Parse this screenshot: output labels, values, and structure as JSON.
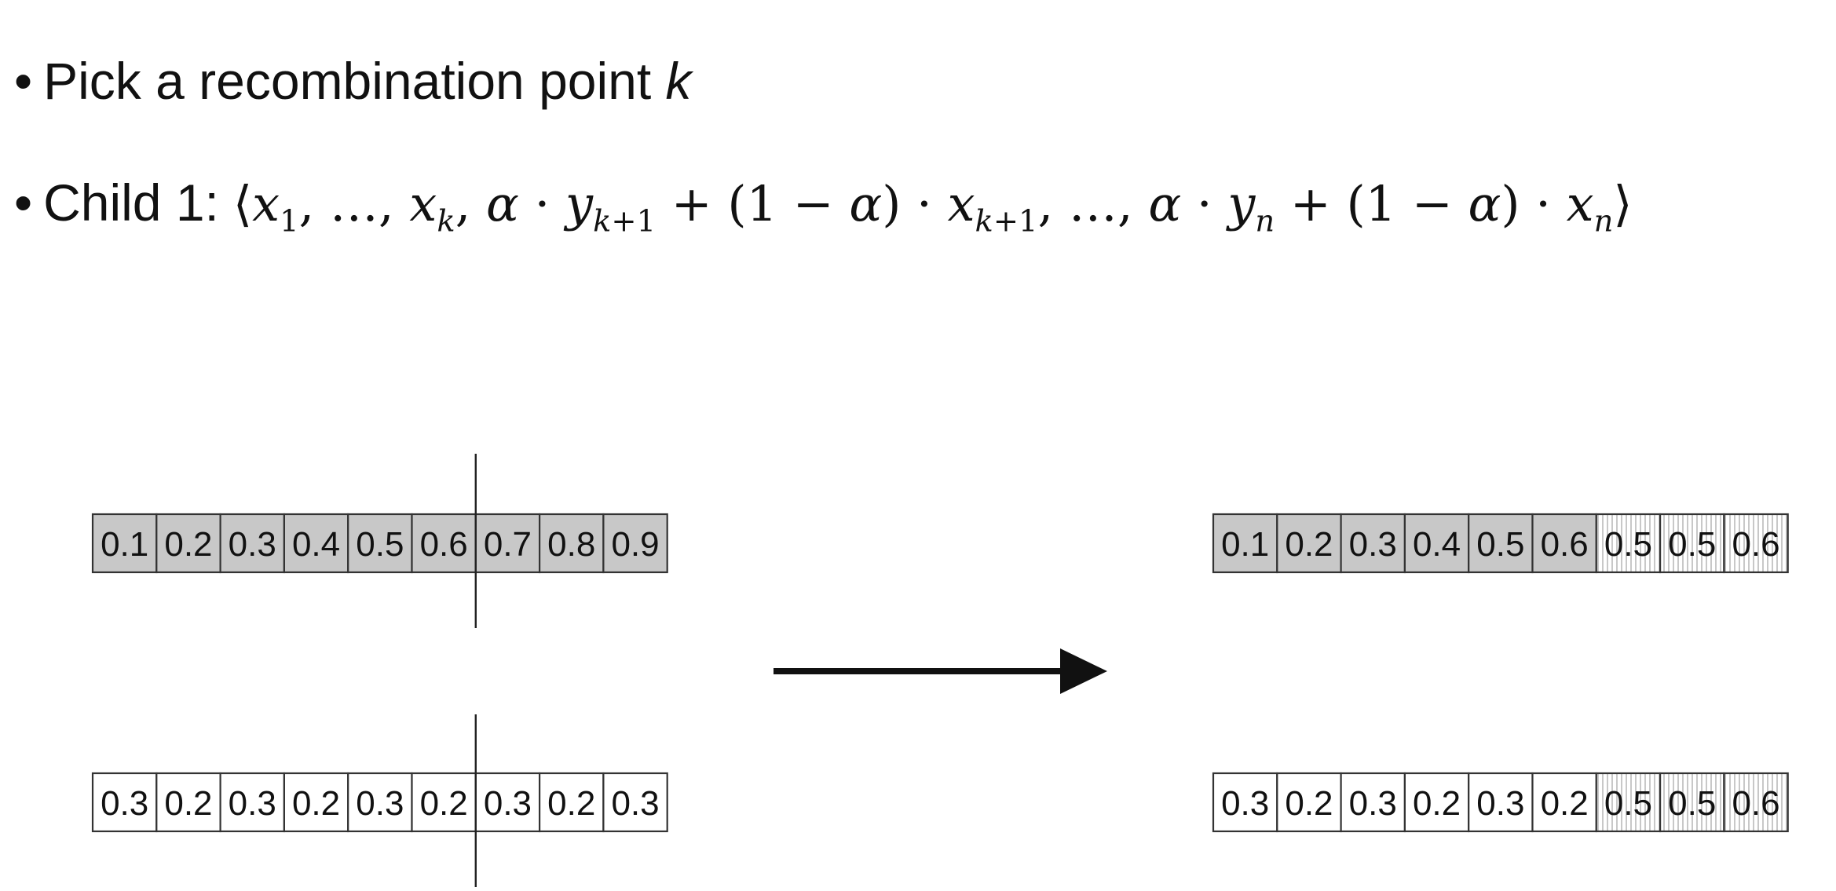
{
  "bullets": {
    "pick": {
      "marker": "•",
      "text": "Pick a recombination point ",
      "var": "k"
    },
    "child": {
      "marker": "•",
      "label": "Child 1:",
      "formula": "⟨x1, ..., xk, α · yk+1 + (1 − α) · xk+1, ..., α · yn + (1 − α) · xn⟩"
    }
  },
  "diagram": {
    "parent1": [
      "0.1",
      "0.2",
      "0.3",
      "0.4",
      "0.5",
      "0.6",
      "0.7",
      "0.8",
      "0.9"
    ],
    "parent2": [
      "0.3",
      "0.2",
      "0.3",
      "0.2",
      "0.3",
      "0.2",
      "0.3",
      "0.2",
      "0.3"
    ],
    "child1": [
      "0.1",
      "0.2",
      "0.3",
      "0.4",
      "0.5",
      "0.6",
      "0.5",
      "0.5",
      "0.6"
    ],
    "child2": [
      "0.3",
      "0.2",
      "0.3",
      "0.2",
      "0.3",
      "0.2",
      "0.5",
      "0.5",
      "0.6"
    ],
    "crossover_index": 6,
    "colors": {
      "parent1_fill": "#c8c8c8",
      "parent2_fill": "#ffffff",
      "border": "#333333",
      "arrow": "#111111"
    }
  }
}
